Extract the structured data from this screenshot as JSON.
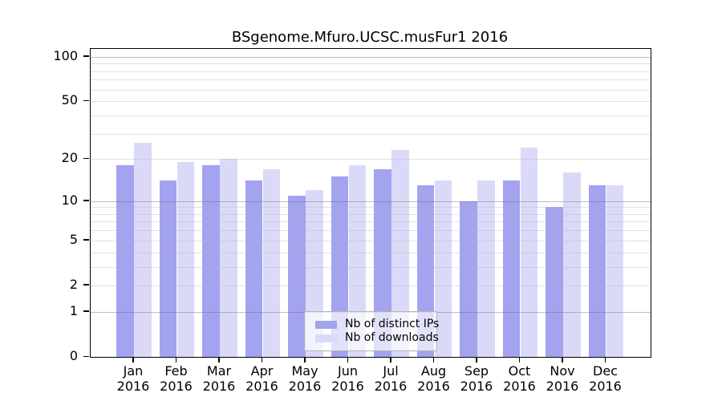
{
  "window": {
    "title": "BSgenome.Mfuro.UCSC.musFur1 2016"
  },
  "chart_data": {
    "type": "bar",
    "title": "BSgenome.Mfuro.UCSC.musFur1 2016",
    "months": [
      "Jan",
      "Feb",
      "Mar",
      "Apr",
      "May",
      "Jun",
      "Jul",
      "Aug",
      "Sep",
      "Oct",
      "Nov",
      "Dec"
    ],
    "year": "2016",
    "series": [
      {
        "name": "Nb of distinct IPs",
        "key": "distinct-ips",
        "color": "#a3a3f0",
        "values": [
          18,
          14,
          18,
          14,
          11,
          15,
          17,
          13,
          10,
          14,
          9,
          13
        ]
      },
      {
        "name": "Nb of downloads",
        "key": "downloads",
        "color": "#dadaf8",
        "values": [
          26,
          19,
          20,
          17,
          12,
          18,
          23,
          14,
          14,
          24,
          16,
          13
        ]
      }
    ],
    "yscale": "log1p",
    "ylim": [
      0,
      113
    ],
    "yticks": [
      0,
      1,
      2,
      5,
      10,
      20,
      50,
      100
    ],
    "minor_gridlines": [
      2,
      3,
      4,
      5,
      6,
      7,
      8,
      9,
      20,
      30,
      40,
      50,
      60,
      70,
      80,
      90
    ],
    "major_gridlines": [
      1,
      10,
      100
    ],
    "grid": true,
    "legend_position": "bottom-center-inside"
  },
  "colors": {
    "bar_distinct_ips": "#a3a3f0",
    "bar_downloads": "#dadaf8",
    "axis": "#000000",
    "legend_border": "#b3b3b3"
  }
}
